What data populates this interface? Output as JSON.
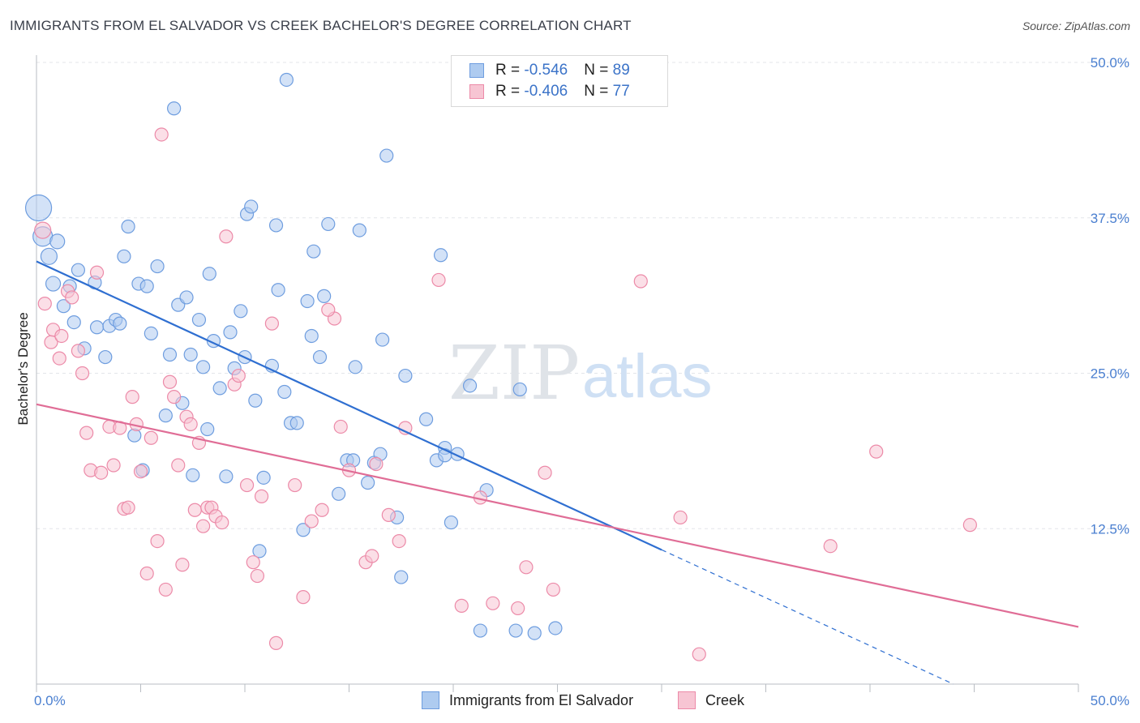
{
  "header": {
    "title": "IMMIGRANTS FROM EL SALVADOR VS CREEK BACHELOR'S DEGREE CORRELATION CHART",
    "source": "Source: ZipAtlas.com"
  },
  "watermark": {
    "zip": "ZIP",
    "atlas": "atlas"
  },
  "legend": {
    "rows": [
      {
        "r_label": "R = ",
        "r_value": "-0.546",
        "n_label": "N = ",
        "n_value": "89"
      },
      {
        "r_label": "R = ",
        "r_value": "-0.406",
        "n_label": "N = ",
        "n_value": "77"
      }
    ]
  },
  "colors": {
    "blue_fill": "#aecbf0",
    "blue_stroke": "#6e9ddf",
    "blue_line": "#2f6fd1",
    "pink_fill": "#f7c5d3",
    "pink_stroke": "#ec8aa8",
    "pink_line": "#e06d96",
    "tick_text": "#4a7fd0",
    "grid": "#e3e6ea"
  },
  "chart_data": {
    "type": "scatter",
    "ylabel": "Bachelor's Degree",
    "xlabel": "",
    "xlim": [
      0,
      50
    ],
    "ylim": [
      0,
      50
    ],
    "x_tick_labels": [
      {
        "value": 0,
        "label": "0.0%"
      },
      {
        "value": 50,
        "label": "50.0%"
      }
    ],
    "y_tick_labels": [
      {
        "value": 12.5,
        "label": "12.5%"
      },
      {
        "value": 25.0,
        "label": "25.0%"
      },
      {
        "value": 37.5,
        "label": "37.5%"
      },
      {
        "value": 50.0,
        "label": "50.0%"
      }
    ],
    "series": [
      {
        "name": "Immigrants from El Salvador",
        "color": "#aecbf0",
        "trend": {
          "x0": 0,
          "y0": 34.0,
          "x1": 30.0,
          "y1": 10.8,
          "dashed_to_x": 44.0,
          "dashed_to_y": 0
        },
        "points": [
          [
            0.1,
            38.3,
            1.6
          ],
          [
            0.3,
            36.0,
            1.2
          ],
          [
            0.6,
            34.4,
            1.0
          ],
          [
            0.8,
            32.2,
            0.9
          ],
          [
            1.0,
            35.6,
            0.9
          ],
          [
            1.3,
            30.4,
            0.8
          ],
          [
            1.6,
            32.0,
            0.8
          ],
          [
            1.8,
            29.1,
            0.8
          ],
          [
            2.0,
            33.3,
            0.8
          ],
          [
            2.3,
            27.0,
            0.8
          ],
          [
            2.8,
            32.3,
            0.8
          ],
          [
            2.9,
            28.7,
            0.8
          ],
          [
            3.3,
            26.3,
            0.8
          ],
          [
            3.5,
            28.8,
            0.8
          ],
          [
            3.8,
            29.3,
            0.8
          ],
          [
            4.0,
            29.0,
            0.8
          ],
          [
            4.2,
            34.4,
            0.8
          ],
          [
            4.4,
            36.8,
            0.8
          ],
          [
            4.7,
            20.0,
            0.8
          ],
          [
            4.9,
            32.2,
            0.8
          ],
          [
            5.1,
            17.2,
            0.8
          ],
          [
            5.3,
            32.0,
            0.8
          ],
          [
            5.5,
            28.2,
            0.8
          ],
          [
            5.8,
            33.6,
            0.8
          ],
          [
            6.2,
            21.6,
            0.8
          ],
          [
            6.4,
            26.5,
            0.8
          ],
          [
            6.6,
            46.3,
            0.8
          ],
          [
            6.8,
            30.5,
            0.8
          ],
          [
            7.0,
            22.6,
            0.8
          ],
          [
            7.2,
            31.1,
            0.8
          ],
          [
            7.4,
            26.5,
            0.8
          ],
          [
            7.5,
            16.8,
            0.8
          ],
          [
            7.8,
            29.3,
            0.8
          ],
          [
            8.0,
            25.5,
            0.8
          ],
          [
            8.2,
            20.5,
            0.8
          ],
          [
            8.3,
            33.0,
            0.8
          ],
          [
            8.5,
            27.6,
            0.8
          ],
          [
            8.8,
            23.8,
            0.8
          ],
          [
            9.1,
            16.7,
            0.8
          ],
          [
            9.3,
            28.3,
            0.8
          ],
          [
            9.5,
            25.4,
            0.8
          ],
          [
            9.8,
            30.0,
            0.8
          ],
          [
            10.0,
            26.3,
            0.8
          ],
          [
            10.1,
            37.8,
            0.8
          ],
          [
            10.3,
            38.4,
            0.8
          ],
          [
            10.5,
            22.8,
            0.8
          ],
          [
            10.7,
            10.7,
            0.8
          ],
          [
            10.9,
            16.6,
            0.8
          ],
          [
            11.3,
            25.6,
            0.8
          ],
          [
            11.5,
            36.9,
            0.8
          ],
          [
            11.6,
            31.7,
            0.8
          ],
          [
            11.9,
            23.5,
            0.8
          ],
          [
            12.0,
            48.6,
            0.8
          ],
          [
            12.2,
            21.0,
            0.8
          ],
          [
            12.5,
            21.0,
            0.8
          ],
          [
            12.8,
            12.4,
            0.8
          ],
          [
            13.0,
            30.8,
            0.8
          ],
          [
            13.2,
            28.0,
            0.8
          ],
          [
            13.3,
            34.8,
            0.8
          ],
          [
            13.6,
            26.3,
            0.8
          ],
          [
            13.8,
            31.2,
            0.8
          ],
          [
            14.0,
            37.0,
            0.8
          ],
          [
            14.5,
            15.3,
            0.8
          ],
          [
            14.9,
            18.0,
            0.8
          ],
          [
            15.2,
            18.0,
            0.8
          ],
          [
            15.3,
            25.5,
            0.8
          ],
          [
            15.5,
            36.5,
            0.8
          ],
          [
            15.9,
            16.2,
            0.8
          ],
          [
            16.2,
            17.8,
            0.8
          ],
          [
            16.5,
            18.5,
            0.8
          ],
          [
            16.6,
            27.7,
            0.8
          ],
          [
            16.8,
            42.5,
            0.8
          ],
          [
            17.3,
            13.4,
            0.8
          ],
          [
            17.5,
            8.6,
            0.8
          ],
          [
            17.7,
            24.8,
            0.8
          ],
          [
            18.7,
            21.3,
            0.8
          ],
          [
            19.2,
            18.0,
            0.8
          ],
          [
            19.4,
            34.5,
            0.8
          ],
          [
            19.6,
            19.0,
            0.8
          ],
          [
            19.9,
            13.0,
            0.8
          ],
          [
            20.2,
            18.5,
            0.8
          ],
          [
            20.8,
            24.0,
            0.8
          ],
          [
            21.3,
            4.3,
            0.8
          ],
          [
            21.6,
            15.6,
            0.8
          ],
          [
            23.0,
            4.3,
            0.8
          ],
          [
            23.9,
            4.1,
            0.8
          ],
          [
            24.9,
            4.5,
            0.8
          ],
          [
            19.6,
            18.4,
            0.8
          ],
          [
            23.2,
            23.7,
            0.8
          ]
        ]
      },
      {
        "name": "Creek",
        "color": "#f7c5d3",
        "trend": {
          "x0": 0,
          "y0": 22.5,
          "x1": 50,
          "y1": 4.6
        },
        "points": [
          [
            0.3,
            36.5,
            1.0
          ],
          [
            0.4,
            30.6,
            0.8
          ],
          [
            0.7,
            27.5,
            0.8
          ],
          [
            0.8,
            28.5,
            0.8
          ],
          [
            1.1,
            26.2,
            0.8
          ],
          [
            1.2,
            28.0,
            0.8
          ],
          [
            1.5,
            31.6,
            0.8
          ],
          [
            1.7,
            31.1,
            0.8
          ],
          [
            2.0,
            26.8,
            0.8
          ],
          [
            2.2,
            25.0,
            0.8
          ],
          [
            2.4,
            20.2,
            0.8
          ],
          [
            2.6,
            17.2,
            0.8
          ],
          [
            2.9,
            33.1,
            0.8
          ],
          [
            3.1,
            17.0,
            0.8
          ],
          [
            3.5,
            20.7,
            0.8
          ],
          [
            3.7,
            17.6,
            0.8
          ],
          [
            4.0,
            20.6,
            0.8
          ],
          [
            4.2,
            14.1,
            0.8
          ],
          [
            4.4,
            14.2,
            0.8
          ],
          [
            4.6,
            23.1,
            0.8
          ],
          [
            4.8,
            20.9,
            0.8
          ],
          [
            5.0,
            17.1,
            0.8
          ],
          [
            5.3,
            8.9,
            0.8
          ],
          [
            5.5,
            19.8,
            0.8
          ],
          [
            5.8,
            11.5,
            0.8
          ],
          [
            6.0,
            44.2,
            0.8
          ],
          [
            6.2,
            7.6,
            0.8
          ],
          [
            6.4,
            24.3,
            0.8
          ],
          [
            6.6,
            23.1,
            0.8
          ],
          [
            6.8,
            17.6,
            0.8
          ],
          [
            7.0,
            9.6,
            0.8
          ],
          [
            7.2,
            21.5,
            0.8
          ],
          [
            7.4,
            20.9,
            0.8
          ],
          [
            7.6,
            14.0,
            0.8
          ],
          [
            7.8,
            19.4,
            0.8
          ],
          [
            8.0,
            12.7,
            0.8
          ],
          [
            8.2,
            14.2,
            0.8
          ],
          [
            8.4,
            14.2,
            0.8
          ],
          [
            8.6,
            13.5,
            0.8
          ],
          [
            8.9,
            13.0,
            0.8
          ],
          [
            9.1,
            36.0,
            0.8
          ],
          [
            9.5,
            24.1,
            0.8
          ],
          [
            9.7,
            24.8,
            0.8
          ],
          [
            10.1,
            16.0,
            0.8
          ],
          [
            10.4,
            9.8,
            0.8
          ],
          [
            10.6,
            8.7,
            0.8
          ],
          [
            10.8,
            15.1,
            0.8
          ],
          [
            11.3,
            29.0,
            0.8
          ],
          [
            11.5,
            3.3,
            0.8
          ],
          [
            12.4,
            16.0,
            0.8
          ],
          [
            12.8,
            7.0,
            0.8
          ],
          [
            13.2,
            13.1,
            0.8
          ],
          [
            13.7,
            14.0,
            0.8
          ],
          [
            14.3,
            29.4,
            0.8
          ],
          [
            14.6,
            20.7,
            0.8
          ],
          [
            15.0,
            17.2,
            0.8
          ],
          [
            15.8,
            9.8,
            0.8
          ],
          [
            16.1,
            10.3,
            0.8
          ],
          [
            16.3,
            17.7,
            0.8
          ],
          [
            16.9,
            13.6,
            0.8
          ],
          [
            17.4,
            11.5,
            0.8
          ],
          [
            17.7,
            20.6,
            0.8
          ],
          [
            19.3,
            32.5,
            0.8
          ],
          [
            20.4,
            6.3,
            0.8
          ],
          [
            21.3,
            15.0,
            0.8
          ],
          [
            21.9,
            6.5,
            0.8
          ],
          [
            23.1,
            6.1,
            0.8
          ],
          [
            23.5,
            9.4,
            0.8
          ],
          [
            24.4,
            17.0,
            0.8
          ],
          [
            24.8,
            7.6,
            0.8
          ],
          [
            29.0,
            32.4,
            0.8
          ],
          [
            30.9,
            13.4,
            0.8
          ],
          [
            31.8,
            2.4,
            0.8
          ],
          [
            38.1,
            11.1,
            0.8
          ],
          [
            40.3,
            18.7,
            0.8
          ],
          [
            44.8,
            12.8,
            0.8
          ],
          [
            14.0,
            30.1,
            0.8
          ]
        ]
      }
    ]
  },
  "bottom_legend": [
    {
      "label": "Immigrants from El Salvador"
    },
    {
      "label": "Creek"
    }
  ]
}
